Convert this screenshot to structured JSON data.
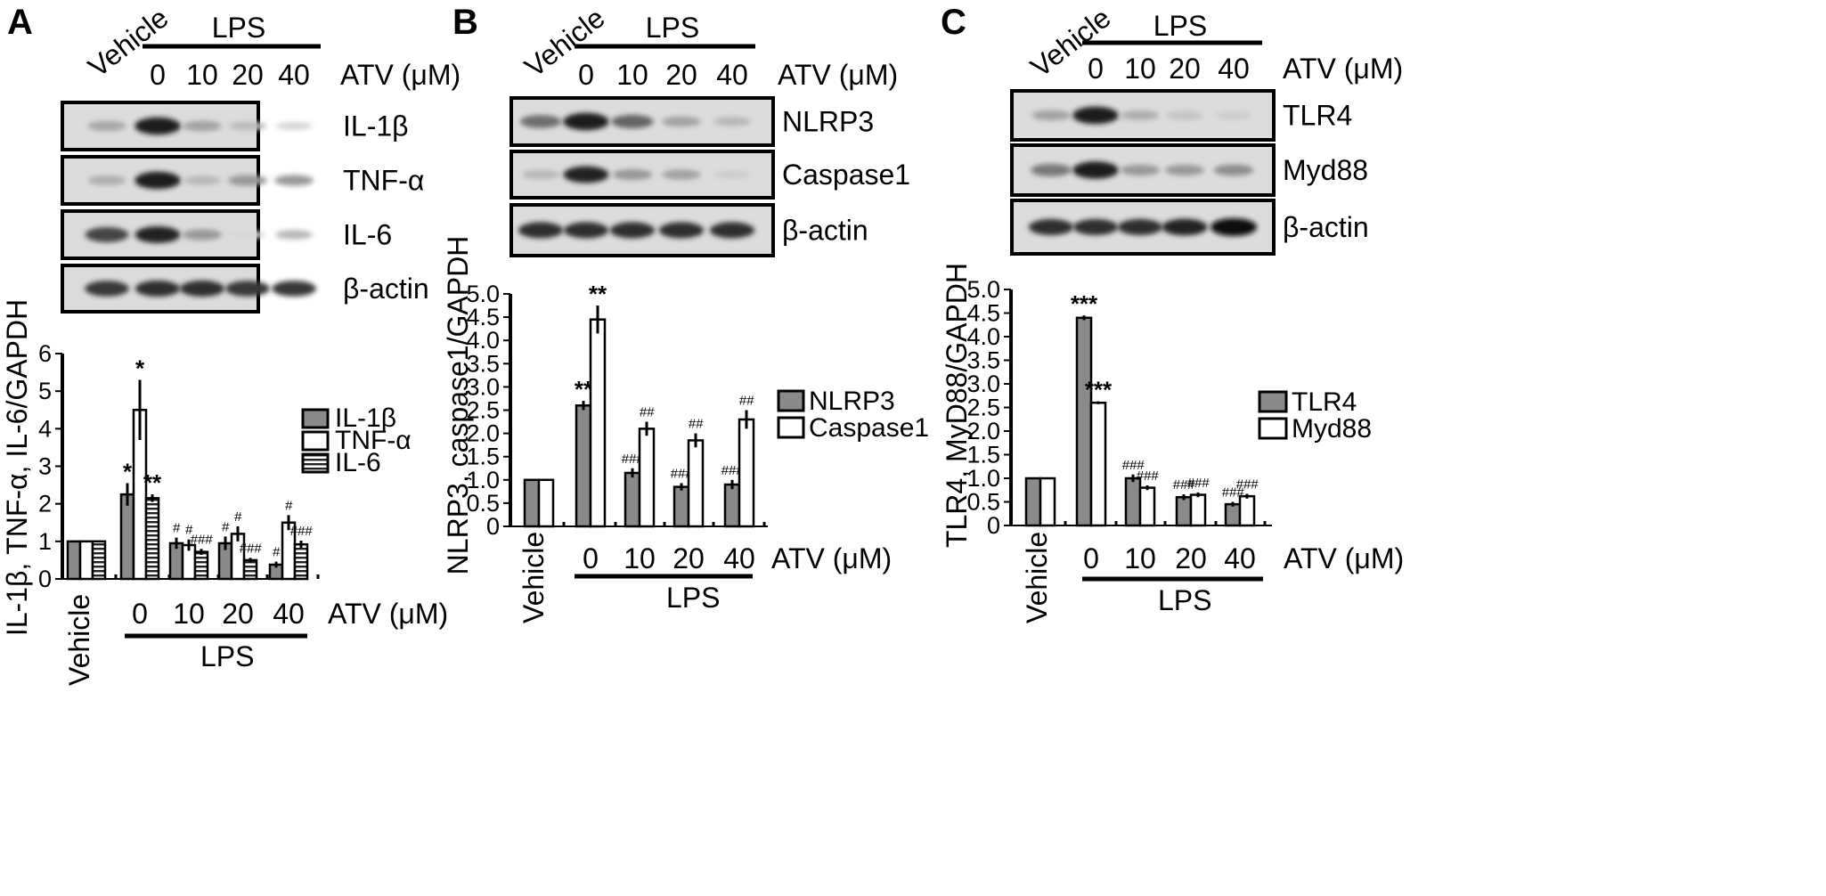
{
  "panels": [
    {
      "letter": "A",
      "vehicle_label": "Vehicle",
      "lps_label": "LPS",
      "atv_label": "ATV (μM)",
      "doses": [
        "0",
        "10",
        "20",
        "40"
      ],
      "blots": [
        "IL-1β",
        "TNF-α",
        "IL-6",
        "β-actin"
      ],
      "chart_data": {
        "type": "bar",
        "ylabel": "IL-1β, TNF-α, IL-6/GAPDH",
        "xlabel": "ATV (μM)",
        "categories": [
          "Vehicle",
          "0",
          "10",
          "20",
          "40"
        ],
        "group_label": "LPS",
        "ylim": [
          0,
          6
        ],
        "yticks": [
          "0",
          "1",
          "2",
          "3",
          "4",
          "5",
          "6"
        ],
        "legend_position": "right",
        "series": [
          {
            "name": "IL-1β",
            "pattern": "gray",
            "values": [
              1.0,
              2.25,
              0.95,
              0.95,
              0.38
            ],
            "errors": [
              0,
              0.3,
              0.15,
              0.18,
              0.08
            ],
            "sig": [
              "",
              "*",
              "#",
              "#",
              "#"
            ]
          },
          {
            "name": "TNF-α",
            "pattern": "white",
            "values": [
              1.0,
              4.5,
              0.9,
              1.2,
              1.5
            ],
            "errors": [
              0,
              0.8,
              0.15,
              0.2,
              0.2
            ],
            "sig": [
              "",
              "*",
              "#",
              "#",
              "#"
            ]
          },
          {
            "name": "IL-6",
            "pattern": "striped",
            "values": [
              1.0,
              2.15,
              0.72,
              0.5,
              0.92
            ],
            "errors": [
              0,
              0.1,
              0.08,
              0.06,
              0.1
            ],
            "sig": [
              "",
              "**",
              "###",
              "###",
              "###"
            ]
          }
        ]
      }
    },
    {
      "letter": "B",
      "vehicle_label": "Vehicle",
      "lps_label": "LPS",
      "atv_label": "ATV (μM)",
      "doses": [
        "0",
        "10",
        "20",
        "40"
      ],
      "blots": [
        "NLRP3",
        "Caspase1",
        "β-actin"
      ],
      "chart_data": {
        "type": "bar",
        "ylabel": "NLRP3, caspase1/GAPDH",
        "xlabel": "ATV (μM)",
        "categories": [
          "Vehicle",
          "0",
          "10",
          "20",
          "40"
        ],
        "group_label": "LPS",
        "ylim": [
          0,
          5
        ],
        "yticks": [
          "0",
          "0.5",
          "1.0",
          "1.5",
          "2.0",
          "2.5",
          "3.0",
          "3.5",
          "4.0",
          "4.5",
          "5.0"
        ],
        "legend_position": "right",
        "series": [
          {
            "name": "NLRP3",
            "pattern": "gray",
            "values": [
              1.0,
              2.6,
              1.15,
              0.85,
              0.9
            ],
            "errors": [
              0,
              0.1,
              0.1,
              0.08,
              0.1
            ],
            "sig": [
              "",
              "**",
              "###",
              "###",
              "###"
            ]
          },
          {
            "name": "Caspase1",
            "pattern": "white",
            "values": [
              1.0,
              4.45,
              2.1,
              1.85,
              2.3
            ],
            "errors": [
              0,
              0.3,
              0.15,
              0.15,
              0.2
            ],
            "sig": [
              "",
              "**",
              "##",
              "##",
              "##"
            ]
          }
        ]
      }
    },
    {
      "letter": "C",
      "vehicle_label": "Vehicle",
      "lps_label": "LPS",
      "atv_label": "ATV (μM)",
      "doses": [
        "0",
        "10",
        "20",
        "40"
      ],
      "blots": [
        "TLR4",
        "Myd88",
        "β-actin"
      ],
      "chart_data": {
        "type": "bar",
        "ylabel": "TLR4, MyD88/GAPDH",
        "xlabel": "ATV (μM)",
        "categories": [
          "Vehicle",
          "0",
          "10",
          "20",
          "40"
        ],
        "group_label": "LPS",
        "ylim": [
          0,
          5
        ],
        "yticks": [
          "0",
          "0.5",
          "1.0",
          "1.5",
          "2.0",
          "2.5",
          "3.0",
          "3.5",
          "4.0",
          "4.5",
          "5.0"
        ],
        "legend_position": "right",
        "series": [
          {
            "name": "TLR4",
            "pattern": "gray",
            "values": [
              1.0,
              4.4,
              1.0,
              0.6,
              0.45
            ],
            "errors": [
              0,
              0.05,
              0.08,
              0.06,
              0.05
            ],
            "sig": [
              "",
              "***",
              "###",
              "###",
              "###"
            ]
          },
          {
            "name": "Myd88",
            "pattern": "white",
            "values": [
              1.0,
              2.6,
              0.8,
              0.65,
              0.62
            ],
            "errors": [
              0,
              0.03,
              0.05,
              0.05,
              0.05
            ],
            "sig": [
              "",
              "***",
              "###",
              "###",
              "###"
            ]
          }
        ]
      }
    }
  ]
}
